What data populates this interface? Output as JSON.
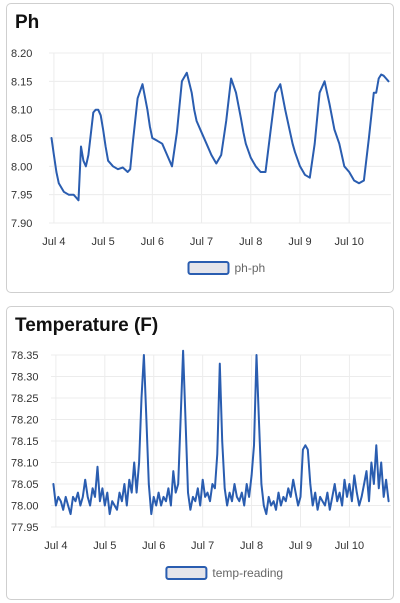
{
  "charts": [
    {
      "title": "Ph",
      "legend": "ph-ph",
      "color": "#2a5db0",
      "legend_fill": "#e4e4ea"
    },
    {
      "title": "Temperature (F)",
      "legend": "temp-reading",
      "color": "#2a5db0",
      "legend_fill": "#e4e4ea"
    }
  ],
  "chart_data": [
    {
      "type": "line",
      "title": "Ph",
      "xlabel": "",
      "ylabel": "",
      "x_tick_labels": [
        "Jul 4",
        "Jul 5",
        "Jul 6",
        "Jul 7",
        "Jul 8",
        "Jul 9",
        "Jul 10"
      ],
      "y_tick_labels": [
        "8.20",
        "8.15",
        "8.10",
        "8.05",
        "8.00",
        "7.95",
        "7.90"
      ],
      "ylim": [
        7.9,
        8.2
      ],
      "xlim": [
        -0.1,
        6.85
      ],
      "grid": true,
      "legend_position": "bottom",
      "series": [
        {
          "name": "ph-ph",
          "x": [
            -0.05,
            0.0,
            0.05,
            0.1,
            0.2,
            0.3,
            0.4,
            0.45,
            0.5,
            0.55,
            0.6,
            0.65,
            0.7,
            0.8,
            0.85,
            0.9,
            0.95,
            1.0,
            1.05,
            1.1,
            1.2,
            1.3,
            1.4,
            1.5,
            1.55,
            1.6,
            1.7,
            1.8,
            1.9,
            1.95,
            2.0,
            2.1,
            2.2,
            2.3,
            2.4,
            2.5,
            2.6,
            2.7,
            2.8,
            2.85,
            2.9,
            3.0,
            3.1,
            3.2,
            3.3,
            3.4,
            3.5,
            3.6,
            3.7,
            3.8,
            3.85,
            3.9,
            4.0,
            4.1,
            4.2,
            4.3,
            4.4,
            4.5,
            4.6,
            4.7,
            4.8,
            4.85,
            4.9,
            5.0,
            5.1,
            5.2,
            5.3,
            5.4,
            5.5,
            5.6,
            5.7,
            5.8,
            5.85,
            5.9,
            6.0,
            6.1,
            6.2,
            6.3,
            6.4,
            6.5,
            6.55,
            6.6,
            6.65,
            6.7,
            6.75,
            6.8
          ],
          "y": [
            8.05,
            8.02,
            7.99,
            7.97,
            7.955,
            7.95,
            7.95,
            7.945,
            7.94,
            8.035,
            8.01,
            8.0,
            8.02,
            8.095,
            8.1,
            8.1,
            8.09,
            8.065,
            8.035,
            8.01,
            8.0,
            7.995,
            7.998,
            7.99,
            7.995,
            8.04,
            8.12,
            8.145,
            8.1,
            8.07,
            8.05,
            8.045,
            8.04,
            8.02,
            8.0,
            8.06,
            8.15,
            8.165,
            8.13,
            8.1,
            8.08,
            8.06,
            8.04,
            8.02,
            8.005,
            8.02,
            8.08,
            8.155,
            8.13,
            8.085,
            8.06,
            8.04,
            8.015,
            8.0,
            7.99,
            7.99,
            8.06,
            8.13,
            8.145,
            8.1,
            8.06,
            8.04,
            8.025,
            8.0,
            7.985,
            7.98,
            8.04,
            8.13,
            8.15,
            8.11,
            8.065,
            8.04,
            8.02,
            8.0,
            7.99,
            7.975,
            7.97,
            7.975,
            8.05,
            8.13,
            8.13,
            8.155,
            8.162,
            8.16,
            8.155,
            8.15
          ]
        }
      ]
    },
    {
      "type": "line",
      "title": "Temperature (F)",
      "xlabel": "",
      "ylabel": "",
      "x_tick_labels": [
        "Jul 4",
        "Jul 5",
        "Jul 6",
        "Jul 7",
        "Jul 8",
        "Jul 9",
        "Jul 10"
      ],
      "y_tick_labels": [
        "78.35",
        "78.30",
        "78.25",
        "78.20",
        "78.15",
        "78.10",
        "78.05",
        "78.00",
        "77.95"
      ],
      "ylim": [
        77.95,
        78.35
      ],
      "xlim": [
        -0.1,
        6.85
      ],
      "grid": true,
      "legend_position": "bottom",
      "series": [
        {
          "name": "temp-reading",
          "x": [
            -0.05,
            0.0,
            0.05,
            0.1,
            0.15,
            0.2,
            0.25,
            0.3,
            0.35,
            0.4,
            0.45,
            0.5,
            0.55,
            0.6,
            0.65,
            0.7,
            0.75,
            0.8,
            0.85,
            0.9,
            0.95,
            1.0,
            1.05,
            1.1,
            1.15,
            1.2,
            1.25,
            1.3,
            1.35,
            1.4,
            1.45,
            1.5,
            1.55,
            1.6,
            1.65,
            1.7,
            1.75,
            1.8,
            1.85,
            1.9,
            1.95,
            2.0,
            2.05,
            2.1,
            2.15,
            2.2,
            2.25,
            2.3,
            2.35,
            2.4,
            2.45,
            2.5,
            2.55,
            2.6,
            2.65,
            2.7,
            2.75,
            2.8,
            2.85,
            2.9,
            2.95,
            3.0,
            3.05,
            3.1,
            3.15,
            3.2,
            3.25,
            3.3,
            3.35,
            3.4,
            3.45,
            3.5,
            3.55,
            3.6,
            3.65,
            3.7,
            3.75,
            3.8,
            3.85,
            3.9,
            3.95,
            4.0,
            4.05,
            4.1,
            4.15,
            4.2,
            4.25,
            4.3,
            4.35,
            4.4,
            4.45,
            4.5,
            4.55,
            4.6,
            4.65,
            4.7,
            4.75,
            4.8,
            4.85,
            4.9,
            4.95,
            5.0,
            5.05,
            5.1,
            5.15,
            5.2,
            5.25,
            5.3,
            5.35,
            5.4,
            5.45,
            5.5,
            5.55,
            5.6,
            5.65,
            5.7,
            5.75,
            5.8,
            5.85,
            5.9,
            5.95,
            6.0,
            6.05,
            6.1,
            6.15,
            6.2,
            6.25,
            6.3,
            6.35,
            6.4,
            6.45,
            6.5,
            6.55,
            6.6,
            6.65,
            6.7,
            6.75,
            6.8
          ],
          "y": [
            78.05,
            78.0,
            78.02,
            78.01,
            77.99,
            78.02,
            78.0,
            77.98,
            78.02,
            78.01,
            78.03,
            78.0,
            78.02,
            78.06,
            78.02,
            78.0,
            78.04,
            78.02,
            78.09,
            78.01,
            78.04,
            78.0,
            78.03,
            77.98,
            78.01,
            78.0,
            77.99,
            78.03,
            78.01,
            78.05,
            78.0,
            78.06,
            78.03,
            78.1,
            78.03,
            78.1,
            78.25,
            78.35,
            78.2,
            78.05,
            77.98,
            78.02,
            78.0,
            78.03,
            78.0,
            78.02,
            78.01,
            78.04,
            78.0,
            78.08,
            78.03,
            78.05,
            78.2,
            78.36,
            78.2,
            78.03,
            77.99,
            78.02,
            78.01,
            78.04,
            78.0,
            78.06,
            78.02,
            78.03,
            78.01,
            78.05,
            78.04,
            78.12,
            78.33,
            78.15,
            78.04,
            78.0,
            78.03,
            78.01,
            78.05,
            78.02,
            78.01,
            78.03,
            78.0,
            78.05,
            78.02,
            78.07,
            78.14,
            78.35,
            78.2,
            78.05,
            78.0,
            77.98,
            78.02,
            78.0,
            78.01,
            77.99,
            78.03,
            78.0,
            78.02,
            78.01,
            78.04,
            78.02,
            78.06,
            78.03,
            78.0,
            78.02,
            78.13,
            78.14,
            78.13,
            78.05,
            78.0,
            78.03,
            77.99,
            78.02,
            78.01,
            78.0,
            78.03,
            77.99,
            78.02,
            78.05,
            78.01,
            78.03,
            78.0,
            78.06,
            78.02,
            78.05,
            78.01,
            78.07,
            78.03,
            78.0,
            78.02,
            78.05,
            78.08,
            78.01,
            78.1,
            78.05,
            78.14,
            78.04,
            78.1,
            78.02,
            78.06,
            78.01
          ]
        }
      ]
    }
  ]
}
